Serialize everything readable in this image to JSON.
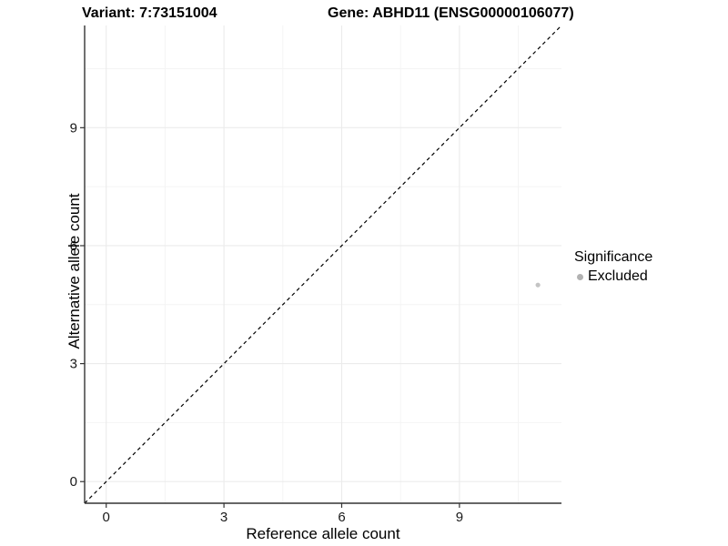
{
  "chart_data": {
    "type": "scatter",
    "title_left": "Variant: 7:73151004",
    "title_right": "Gene: ABHD11 (ENSG00000106077)",
    "xlabel": "Reference allele count",
    "ylabel": "Alternative allele count",
    "xlim": [
      -0.55,
      11.6
    ],
    "ylim": [
      -0.55,
      11.6
    ],
    "x_ticks": [
      0,
      3,
      6,
      9
    ],
    "y_ticks": [
      0,
      3,
      6,
      9
    ],
    "x_minor_ticks": [
      1.5,
      4.5,
      7.5,
      10.5
    ],
    "y_minor_ticks": [
      1.5,
      4.5,
      7.5,
      10.5
    ],
    "grid": "major+minor",
    "identity_line": {
      "style": "dashed",
      "slope": 1,
      "intercept": 0
    },
    "points": [
      {
        "x": 11,
        "y": 5,
        "significance": "Excluded"
      }
    ],
    "legend": {
      "title": "Significance",
      "position": "right",
      "items": [
        {
          "label": "Excluded",
          "color": "#b2b2b2",
          "marker": "circle"
        }
      ]
    },
    "colors": {
      "point": "#c4c4c4",
      "axis": "#333333",
      "grid_major": "#ebebeb",
      "grid_minor": "#f4f4f4",
      "identity_line": "#000000",
      "tick_label": "#1a1a1a",
      "background": "#ffffff"
    }
  }
}
